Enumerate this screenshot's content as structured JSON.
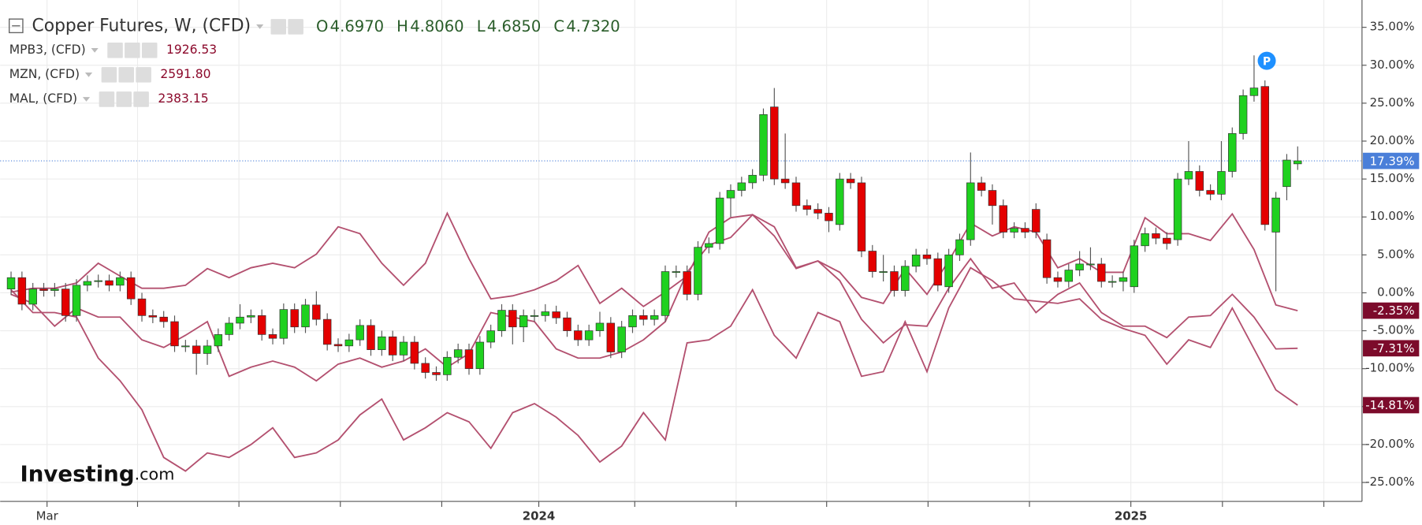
{
  "chart_data": {
    "type": "candlestick",
    "title": "Copper Futures, W, (CFD)",
    "header_values": [
      {
        "name": "O",
        "text": "4.6970"
      },
      {
        "name": "H",
        "text": "4.8060"
      },
      {
        "name": "L",
        "text": "4.6850"
      },
      {
        "name": "C",
        "text": "4.7320"
      }
    ],
    "logo": {
      "main": "Investing",
      "suffix": ".com"
    },
    "marker_label": "P",
    "up_color": "#1fd11f",
    "down_color": "#e40000",
    "last_value": 17.39,
    "last_label": "17.39%",
    "last_color": "#4a7fd9",
    "open": [
      0.5,
      2.0,
      -1.5,
      0.5,
      0.3,
      0.5,
      -3.0,
      1.0,
      1.5,
      1.6,
      1.0,
      2.0,
      -0.8,
      -3.0,
      -3.2,
      -3.8,
      -7.0,
      -7.0,
      -8.0,
      -7.0,
      -5.5,
      -4.0,
      -3.2,
      -3.0,
      -5.5,
      -6.0,
      -2.2,
      -4.5,
      -1.6,
      -3.5,
      -6.8,
      -7.0,
      -6.2,
      -4.3,
      -7.5,
      -5.8,
      -8.2,
      -6.5,
      -9.3,
      -10.5,
      -10.8,
      -8.5,
      -7.5,
      -10.0,
      -6.5,
      -5.0,
      -2.3,
      -4.5,
      -3.0,
      -3.0,
      -2.5,
      -3.3,
      -5.0,
      -6.2,
      -5.0,
      -4.0,
      -7.8,
      -4.5,
      -3.0,
      -3.5,
      -3.0,
      2.8,
      2.8,
      -0.2,
      6.0,
      6.5,
      12.5,
      13.5,
      14.5,
      15.5,
      24.5,
      15.0,
      14.5,
      11.5,
      11.0,
      10.5,
      9.0,
      15.0,
      14.5,
      5.5,
      2.8,
      2.8,
      0.3,
      3.5,
      5.0,
      4.5,
      0.8,
      5.0,
      7.0,
      14.5,
      13.5,
      11.5,
      8.0,
      8.5,
      11.0,
      7.0,
      2.0,
      1.5,
      3.0,
      3.8,
      3.8,
      1.5,
      1.5,
      0.8,
      6.2,
      7.8,
      7.2,
      7.0,
      15.0,
      16.0,
      13.5,
      13.0,
      16.0,
      21.0,
      26.0,
      27.2,
      8.0,
      14.0,
      17.0
    ],
    "high": [
      2.8,
      2.8,
      1.3,
      1.3,
      1.3,
      1.3,
      1.8,
      2.3,
      2.4,
      2.4,
      2.8,
      2.8,
      0.0,
      -2.2,
      -2.4,
      -3.0,
      -6.2,
      -6.2,
      -6.2,
      -4.7,
      -3.2,
      -1.5,
      -2.2,
      -2.2,
      -4.7,
      -1.4,
      -1.4,
      -0.8,
      0.2,
      -2.7,
      -6.0,
      -5.4,
      -3.5,
      -3.5,
      -5.0,
      -5.0,
      -5.7,
      -5.7,
      -8.5,
      -9.7,
      -7.7,
      -6.7,
      -6.7,
      -5.7,
      -4.2,
      -1.5,
      -1.5,
      -2.2,
      -2.2,
      -1.5,
      -1.7,
      -2.5,
      -4.2,
      -4.2,
      -2.5,
      -3.2,
      -3.7,
      -2.2,
      -2.2,
      -2.2,
      3.6,
      3.6,
      3.6,
      6.8,
      7.3,
      13.3,
      14.3,
      15.3,
      16.3,
      24.3,
      27.0,
      21.0,
      15.3,
      12.3,
      11.8,
      11.3,
      15.8,
      15.8,
      15.3,
      6.3,
      5.0,
      3.6,
      4.3,
      5.8,
      5.8,
      5.3,
      5.8,
      7.8,
      18.5,
      15.3,
      14.3,
      12.3,
      9.3,
      9.3,
      11.8,
      7.8,
      2.8,
      3.8,
      5.5,
      6.0,
      4.6,
      2.3,
      2.8,
      7.0,
      8.6,
      8.6,
      8.0,
      15.8,
      20.0,
      16.8,
      14.3,
      20.0,
      21.8,
      26.8,
      31.3,
      28.0,
      13.3,
      18.3,
      19.3
    ],
    "low": [
      -0.3,
      -2.3,
      -2.3,
      -0.5,
      -0.5,
      -3.8,
      -3.8,
      0.2,
      0.7,
      0.2,
      0.2,
      -1.6,
      -3.8,
      -4.0,
      -4.6,
      -7.8,
      -7.8,
      -10.8,
      -9.5,
      -7.8,
      -6.3,
      -4.8,
      -4.0,
      -6.3,
      -6.8,
      -6.8,
      -5.3,
      -5.3,
      -4.3,
      -7.6,
      -7.8,
      -7.8,
      -7.0,
      -8.3,
      -8.3,
      -9.0,
      -9.0,
      -10.1,
      -11.3,
      -11.6,
      -11.6,
      -9.3,
      -10.8,
      -10.8,
      -7.3,
      -5.8,
      -6.8,
      -6.5,
      -3.8,
      -3.8,
      -4.1,
      -5.8,
      -7.0,
      -7.0,
      -5.8,
      -8.6,
      -8.6,
      -5.3,
      -4.3,
      -4.3,
      -3.8,
      2.0,
      -1.0,
      -1.0,
      5.2,
      5.7,
      10.0,
      12.7,
      13.7,
      14.7,
      14.2,
      13.7,
      10.7,
      10.2,
      9.7,
      8.0,
      8.2,
      13.7,
      4.7,
      2.0,
      1.5,
      -0.5,
      -0.5,
      2.7,
      3.7,
      0.2,
      0.0,
      4.2,
      6.2,
      12.7,
      9.0,
      7.2,
      7.2,
      7.2,
      7.2,
      1.2,
      0.7,
      0.7,
      2.2,
      3.0,
      0.7,
      0.7,
      0.2,
      0.0,
      5.4,
      6.4,
      5.7,
      6.2,
      14.2,
      12.7,
      12.2,
      12.2,
      15.2,
      20.2,
      25.2,
      8.2,
      0.2,
      12.2,
      16.2
    ],
    "close": [
      2.0,
      -1.5,
      0.5,
      0.3,
      0.5,
      -3.0,
      1.0,
      1.5,
      1.6,
      1.0,
      2.0,
      -0.8,
      -3.0,
      -3.2,
      -3.8,
      -7.0,
      -7.0,
      -8.0,
      -7.0,
      -5.5,
      -4.0,
      -3.2,
      -3.0,
      -5.5,
      -6.0,
      -2.2,
      -4.5,
      -1.6,
      -3.5,
      -6.8,
      -7.0,
      -6.2,
      -4.3,
      -7.5,
      -5.8,
      -8.2,
      -6.5,
      -9.3,
      -10.5,
      -10.8,
      -8.5,
      -7.5,
      -10.0,
      -6.5,
      -5.0,
      -2.3,
      -4.5,
      -3.0,
      -3.0,
      -2.5,
      -3.3,
      -5.0,
      -6.2,
      -5.0,
      -4.0,
      -7.8,
      -4.5,
      -3.0,
      -3.5,
      -3.0,
      2.8,
      2.8,
      -0.2,
      6.0,
      6.5,
      12.5,
      13.5,
      14.5,
      15.5,
      23.5,
      15.0,
      14.5,
      11.5,
      11.0,
      10.5,
      9.5,
      15.0,
      14.5,
      5.5,
      2.8,
      2.8,
      0.3,
      3.5,
      5.0,
      4.5,
      1.0,
      5.0,
      7.0,
      14.5,
      13.5,
      11.5,
      8.0,
      8.5,
      8.0,
      8.0,
      2.0,
      1.5,
      3.0,
      3.8,
      3.8,
      1.5,
      1.5,
      2.0,
      6.2,
      7.8,
      7.2,
      6.5,
      15.0,
      16.0,
      13.5,
      13.0,
      16.0,
      21.0,
      26.0,
      27.0,
      9.0,
      12.5,
      17.5,
      17.4
    ],
    "series": [
      {
        "name": "MPB3, (CFD)",
        "price": "1926.53",
        "color": "#b3506f",
        "end_label": "-7.31%",
        "x": [
          0,
          2,
          4,
          6,
          8,
          10,
          12,
          14,
          16,
          18,
          20,
          22,
          24,
          26,
          28,
          30,
          32,
          34,
          36,
          38,
          40,
          42,
          44,
          46,
          48,
          50,
          52,
          54,
          56,
          58,
          60,
          62,
          64,
          66,
          68,
          70,
          72,
          74,
          76,
          78,
          80,
          82,
          84,
          86,
          88,
          90,
          92,
          94,
          96,
          98,
          100,
          102,
          104,
          106,
          108,
          110,
          112,
          114,
          116,
          118
        ],
        "values": [
          -0.2,
          -1.4,
          -4.4,
          -2.0,
          -3.2,
          -3.2,
          -6.2,
          -7.2,
          -5.6,
          -3.8,
          -11.0,
          -9.8,
          -9.0,
          -9.8,
          -11.6,
          -9.4,
          -8.6,
          -9.8,
          -9.0,
          -7.4,
          -9.8,
          -8.0,
          -2.6,
          -3.2,
          -3.8,
          -7.4,
          -8.6,
          -8.6,
          -7.8,
          -6.2,
          -3.8,
          2.7,
          6.3,
          7.3,
          10.3,
          7.5,
          3.2,
          4.2,
          1.6,
          -3.5,
          -6.6,
          -4.2,
          -4.4,
          0.6,
          4.5,
          0.6,
          1.3,
          -2.6,
          -0.2,
          1.3,
          -2.6,
          -4.4,
          -4.4,
          -5.9,
          -3.2,
          -3.0,
          -0.2,
          -3.2,
          -7.4,
          -7.31
        ]
      },
      {
        "name": "MZN, (CFD)",
        "price": "2591.80",
        "color": "#b3506f",
        "end_label": "-14.81%",
        "x": [
          0,
          2,
          4,
          6,
          8,
          10,
          12,
          14,
          16,
          18,
          20,
          22,
          24,
          26,
          28,
          30,
          32,
          34,
          36,
          38,
          40,
          42,
          44,
          46,
          48,
          50,
          52,
          54,
          56,
          58,
          60,
          62,
          64,
          66,
          68,
          70,
          72,
          74,
          76,
          78,
          80,
          82,
          84,
          86,
          88,
          90,
          92,
          94,
          96,
          98,
          100,
          102,
          104,
          106,
          108,
          110,
          112,
          114,
          116,
          118
        ],
        "values": [
          0.4,
          -2.6,
          -2.6,
          -3.2,
          -8.6,
          -11.6,
          -15.4,
          -21.7,
          -23.5,
          -21.1,
          -21.7,
          -20.0,
          -17.8,
          -21.7,
          -21.1,
          -19.4,
          -16.1,
          -14.0,
          -19.4,
          -17.8,
          -15.8,
          -17.0,
          -20.5,
          -15.8,
          -14.6,
          -16.4,
          -18.8,
          -22.3,
          -20.2,
          -15.8,
          -19.4,
          -6.6,
          -6.2,
          -4.4,
          0.4,
          -5.6,
          -8.6,
          -2.6,
          -3.8,
          -11.0,
          -10.4,
          -3.8,
          -10.4,
          -2.0,
          3.3,
          1.6,
          -0.8,
          -1.1,
          -1.4,
          -0.8,
          -3.5,
          -4.7,
          -5.6,
          -9.4,
          -6.2,
          -7.2,
          -2.0,
          -7.4,
          -12.8,
          -14.81
        ]
      },
      {
        "name": "MAL, (CFD)",
        "price": "2383.15",
        "color": "#b3506f",
        "end_label": "-2.35%",
        "x": [
          0,
          2,
          4,
          6,
          8,
          10,
          12,
          14,
          16,
          18,
          20,
          22,
          24,
          26,
          28,
          30,
          32,
          34,
          36,
          38,
          40,
          42,
          44,
          46,
          48,
          50,
          52,
          54,
          56,
          58,
          60,
          62,
          64,
          66,
          68,
          70,
          72,
          74,
          76,
          78,
          80,
          82,
          84,
          86,
          88,
          90,
          92,
          94,
          96,
          98,
          100,
          102,
          104,
          106,
          108,
          110,
          112,
          114,
          116,
          118
        ],
        "values": [
          0.1,
          0.6,
          0.6,
          1.3,
          3.9,
          2.2,
          0.6,
          0.6,
          1.0,
          3.2,
          2.0,
          3.3,
          3.9,
          3.3,
          5.1,
          8.7,
          7.8,
          3.9,
          1.0,
          3.9,
          10.5,
          4.5,
          -0.8,
          -0.4,
          0.4,
          1.6,
          3.6,
          -1.4,
          0.6,
          -1.8,
          0.1,
          2.2,
          8.0,
          9.9,
          10.3,
          8.7,
          3.3,
          4.2,
          2.7,
          -0.6,
          -1.4,
          3.2,
          -0.2,
          4.2,
          9.2,
          7.5,
          8.7,
          8.0,
          3.3,
          4.5,
          2.7,
          2.7,
          9.9,
          7.8,
          7.8,
          6.9,
          10.4,
          5.7,
          -1.6,
          -2.35
        ]
      }
    ],
    "end_label_color": "#7c0b2b",
    "price_color": "#8c0a2c",
    "ohlc_color": "#2a5d2a",
    "xlim": [
      -1.0,
      123.9
    ],
    "xticks": [
      {
        "value": 3.3,
        "label": "Mar"
      },
      {
        "value": 11.6,
        "label": null
      },
      {
        "value": 20.9,
        "label": null
      },
      {
        "value": 30.2,
        "label": null
      },
      {
        "value": 39.5,
        "label": null
      },
      {
        "value": 48.4,
        "label": "2024"
      },
      {
        "value": 57.2,
        "label": null
      },
      {
        "value": 66.5,
        "label": null
      },
      {
        "value": 74.8,
        "label": null
      },
      {
        "value": 84.1,
        "label": null
      },
      {
        "value": 93.4,
        "label": null
      },
      {
        "value": 102.7,
        "label": "2025"
      },
      {
        "value": 111.1,
        "label": null
      },
      {
        "value": 120.4,
        "label": null
      }
    ],
    "ylim": [
      -27.5,
      38.6
    ],
    "yticks": [
      {
        "value": 35,
        "label": "35.00%"
      },
      {
        "value": 30,
        "label": "30.00%"
      },
      {
        "value": 25,
        "label": "25.00%"
      },
      {
        "value": 20,
        "label": "20.00%"
      },
      {
        "value": 15,
        "label": "15.00%"
      },
      {
        "value": 10,
        "label": "10.00%"
      },
      {
        "value": 5,
        "label": "5.00%"
      },
      {
        "value": 0,
        "label": "0.00%"
      },
      {
        "value": -5,
        "label": "-5.00%"
      },
      {
        "value": -10,
        "label": "-10.00%"
      },
      {
        "value": -15,
        "label": "-15.00%"
      },
      {
        "value": -20,
        "label": "-20.00%"
      },
      {
        "value": -25,
        "label": "-25.00%"
      }
    ],
    "grid": true
  }
}
